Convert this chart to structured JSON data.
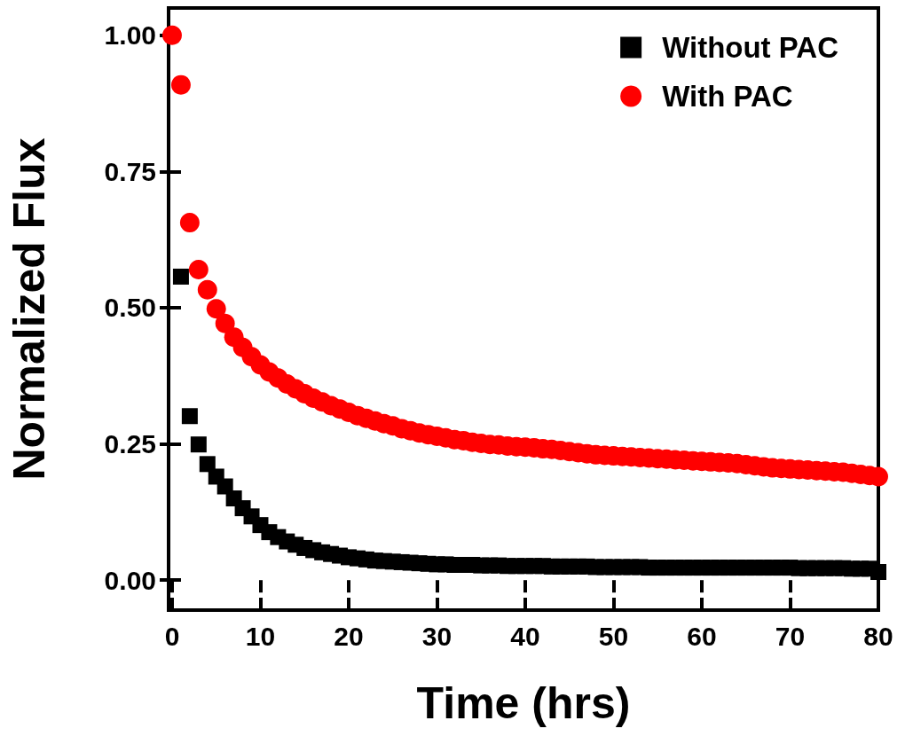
{
  "chart_data": {
    "type": "scatter",
    "xlabel": "Time (hrs)",
    "ylabel": "Normalized Flux",
    "x": [
      0,
      1,
      2,
      3,
      4,
      5,
      6,
      7,
      8,
      9,
      10,
      11,
      12,
      13,
      14,
      15,
      16,
      17,
      18,
      19,
      20,
      21,
      22,
      23,
      24,
      25,
      26,
      27,
      28,
      29,
      30,
      31,
      32,
      33,
      34,
      35,
      36,
      37,
      38,
      39,
      40,
      41,
      42,
      43,
      44,
      45,
      46,
      47,
      48,
      49,
      50,
      51,
      52,
      53,
      54,
      55,
      56,
      57,
      58,
      59,
      60,
      61,
      62,
      63,
      64,
      65,
      66,
      67,
      68,
      69,
      70,
      71,
      72,
      73,
      74,
      75,
      76,
      77,
      78,
      79,
      80
    ],
    "series": [
      {
        "name": "Without PAC",
        "color": "#000000",
        "marker": "square",
        "values": [
          null,
          0.557,
          0.301,
          0.249,
          0.213,
          0.19,
          0.172,
          0.15,
          0.132,
          0.117,
          0.101,
          0.088,
          0.079,
          0.071,
          0.065,
          0.059,
          0.055,
          0.051,
          0.048,
          0.045,
          0.042,
          0.04,
          0.038,
          0.036,
          0.035,
          0.034,
          0.033,
          0.032,
          0.031,
          0.03,
          0.029,
          0.029,
          0.028,
          0.028,
          0.028,
          0.027,
          0.027,
          0.027,
          0.026,
          0.026,
          0.026,
          0.026,
          0.026,
          0.025,
          0.025,
          0.025,
          0.025,
          0.025,
          0.024,
          0.024,
          0.024,
          0.024,
          0.024,
          0.024,
          0.023,
          0.023,
          0.023,
          0.023,
          0.023,
          0.023,
          0.023,
          0.023,
          0.023,
          0.023,
          0.023,
          0.023,
          0.023,
          0.023,
          0.023,
          0.023,
          0.023,
          0.022,
          0.022,
          0.022,
          0.022,
          0.022,
          0.022,
          0.021,
          0.021,
          0.021,
          0.015
        ]
      },
      {
        "name": "With PAC",
        "color": "#ff0000",
        "marker": "circle",
        "values": [
          1.0,
          0.909,
          0.656,
          0.57,
          0.533,
          0.498,
          0.471,
          0.446,
          0.427,
          0.41,
          0.395,
          0.382,
          0.371,
          0.36,
          0.351,
          0.342,
          0.334,
          0.327,
          0.32,
          0.314,
          0.308,
          0.302,
          0.297,
          0.292,
          0.287,
          0.283,
          0.278,
          0.274,
          0.27,
          0.267,
          0.264,
          0.261,
          0.258,
          0.256,
          0.253,
          0.251,
          0.249,
          0.248,
          0.246,
          0.245,
          0.244,
          0.243,
          0.241,
          0.24,
          0.238,
          0.236,
          0.234,
          0.232,
          0.23,
          0.229,
          0.228,
          0.227,
          0.226,
          0.225,
          0.224,
          0.223,
          0.222,
          0.221,
          0.22,
          0.219,
          0.218,
          0.217,
          0.216,
          0.215,
          0.214,
          0.212,
          0.21,
          0.208,
          0.206,
          0.205,
          0.204,
          0.203,
          0.202,
          0.201,
          0.2,
          0.199,
          0.198,
          0.196,
          0.194,
          0.192,
          0.19
        ]
      }
    ],
    "xlim": [
      -0.4,
      80
    ],
    "xticks": [
      0,
      10,
      20,
      30,
      40,
      50,
      60,
      70,
      80
    ],
    "ylim": [
      -0.055,
      1.05
    ],
    "yticks": [
      {
        "value": 0,
        "label": "0.00"
      },
      0.25,
      {
        "value": 0.5,
        "label": "0.50"
      },
      0.75,
      {
        "value": 1,
        "label": "1.00"
      }
    ],
    "grid": false,
    "legend": "top right"
  }
}
